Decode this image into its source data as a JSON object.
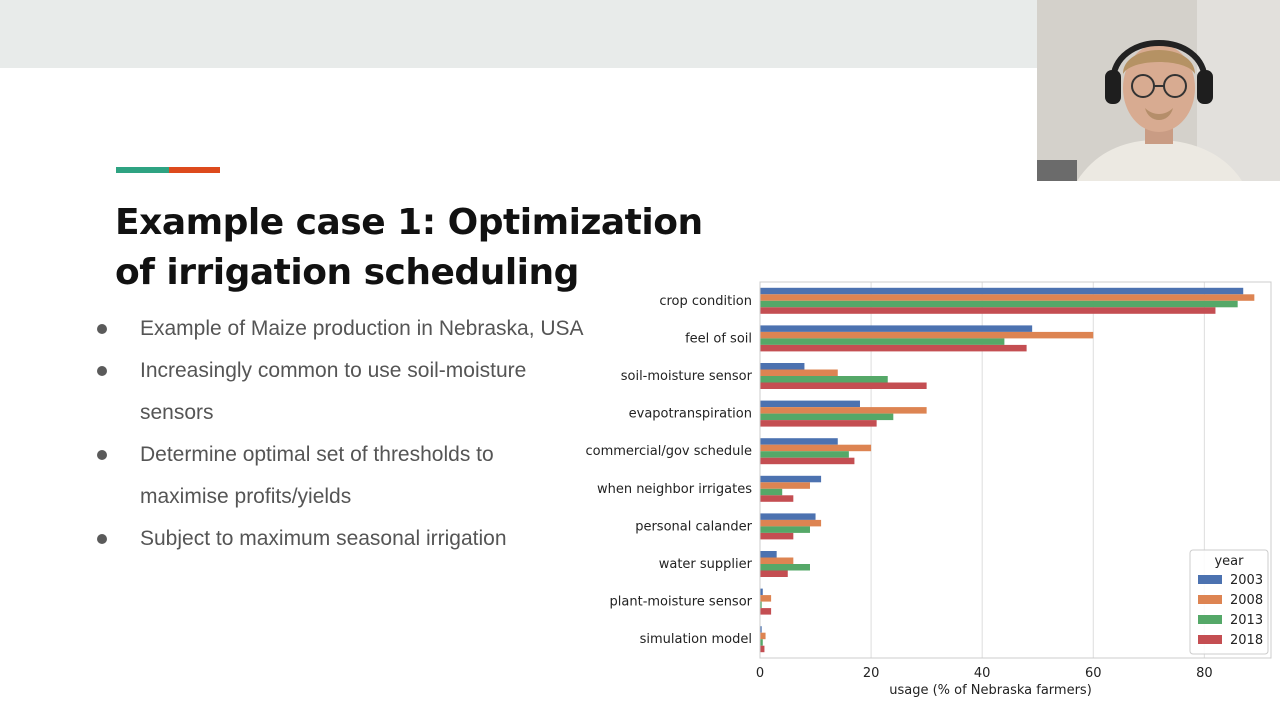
{
  "slide": {
    "title_line1": "Example case 1: Optimization",
    "title_line2": "of irrigation scheduling",
    "bullets": [
      "Example of Maize production in Nebraska, USA",
      "Increasingly common to use soil-moisture sensors",
      "Determine optimal set of thresholds to maximise profits/yields",
      "Subject to maximum seasonal irrigation"
    ],
    "colors": {
      "accent_teal": "#2ea382",
      "accent_orange": "#dd4a1d",
      "top_band": "#e8ebea"
    }
  },
  "chart_data": {
    "type": "bar",
    "orientation": "horizontal",
    "categories": [
      "crop condition",
      "feel of soil",
      "soil-moisture sensor",
      "evapotranspiration",
      "commercial/gov schedule",
      "when neighbor irrigates",
      "personal calander",
      "water supplier",
      "plant-moisture sensor",
      "simulation model"
    ],
    "series": [
      {
        "name": "2003",
        "color": "#4c72b0",
        "values": [
          87,
          49,
          8,
          18,
          14,
          11,
          10,
          3,
          0.5,
          0.3
        ]
      },
      {
        "name": "2008",
        "color": "#dd8452",
        "values": [
          89,
          60,
          14,
          30,
          20,
          9,
          11,
          6,
          2,
          1
        ]
      },
      {
        "name": "2013",
        "color": "#55a868",
        "values": [
          86,
          44,
          23,
          24,
          16,
          4,
          9,
          9,
          0.3,
          0.5
        ]
      },
      {
        "name": "2018",
        "color": "#c44e52",
        "values": [
          82,
          48,
          30,
          21,
          17,
          6,
          6,
          5,
          2,
          0.8
        ]
      }
    ],
    "xlabel": "usage (% of Nebraska farmers)",
    "xticks": [
      0,
      20,
      40,
      60,
      80
    ],
    "xlim": [
      0,
      92
    ],
    "legend_title": "year",
    "legend_position": "lower-right",
    "grid": true
  }
}
